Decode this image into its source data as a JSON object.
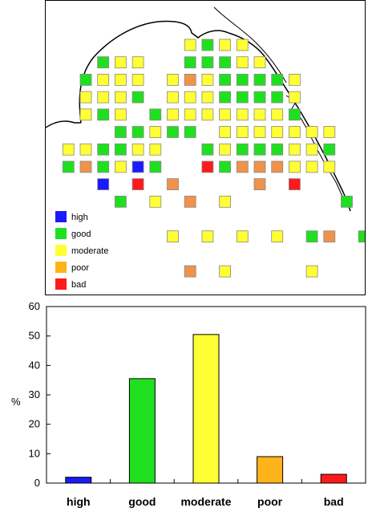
{
  "colors": {
    "high": "#1a1aff",
    "good": "#1fe01f",
    "moderate": "#ffff33",
    "poor": "#ffb31a",
    "poor_map": "#f0924a",
    "bad": "#ff1a1a"
  },
  "map": {
    "legend": [
      {
        "label": "high",
        "color_key": "high"
      },
      {
        "label": "good",
        "color_key": "good"
      },
      {
        "label": "moderate",
        "color_key": "moderate"
      },
      {
        "label": "poor",
        "color_key": "poor"
      },
      {
        "label": "bad",
        "color_key": "bad"
      }
    ],
    "stations": [
      {
        "col": 6,
        "row": 0,
        "status": "moderate"
      },
      {
        "col": 7,
        "row": 0,
        "status": "good"
      },
      {
        "col": 8,
        "row": 0,
        "status": "moderate"
      },
      {
        "col": 9,
        "row": 0,
        "status": "moderate"
      },
      {
        "col": 1,
        "row": 1,
        "status": "good"
      },
      {
        "col": 2,
        "row": 1,
        "status": "moderate"
      },
      {
        "col": 3,
        "row": 1,
        "status": "moderate"
      },
      {
        "col": 6,
        "row": 1,
        "status": "good"
      },
      {
        "col": 7,
        "row": 1,
        "status": "good"
      },
      {
        "col": 8,
        "row": 1,
        "status": "good"
      },
      {
        "col": 9,
        "row": 1,
        "status": "moderate"
      },
      {
        "col": 10,
        "row": 1,
        "status": "moderate"
      },
      {
        "col": 0,
        "row": 2,
        "status": "good"
      },
      {
        "col": 1,
        "row": 2,
        "status": "moderate"
      },
      {
        "col": 2,
        "row": 2,
        "status": "moderate"
      },
      {
        "col": 3,
        "row": 2,
        "status": "moderate"
      },
      {
        "col": 5,
        "row": 2,
        "status": "moderate"
      },
      {
        "col": 6,
        "row": 2,
        "status": "poor"
      },
      {
        "col": 7,
        "row": 2,
        "status": "moderate"
      },
      {
        "col": 8,
        "row": 2,
        "status": "good"
      },
      {
        "col": 9,
        "row": 2,
        "status": "good"
      },
      {
        "col": 10,
        "row": 2,
        "status": "good"
      },
      {
        "col": 11,
        "row": 2,
        "status": "good"
      },
      {
        "col": 12,
        "row": 2,
        "status": "moderate"
      },
      {
        "col": 0,
        "row": 3,
        "status": "moderate"
      },
      {
        "col": 1,
        "row": 3,
        "status": "moderate"
      },
      {
        "col": 2,
        "row": 3,
        "status": "moderate"
      },
      {
        "col": 3,
        "row": 3,
        "status": "good"
      },
      {
        "col": 5,
        "row": 3,
        "status": "moderate"
      },
      {
        "col": 6,
        "row": 3,
        "status": "moderate"
      },
      {
        "col": 7,
        "row": 3,
        "status": "moderate"
      },
      {
        "col": 8,
        "row": 3,
        "status": "good"
      },
      {
        "col": 9,
        "row": 3,
        "status": "good"
      },
      {
        "col": 10,
        "row": 3,
        "status": "good"
      },
      {
        "col": 11,
        "row": 3,
        "status": "good"
      },
      {
        "col": 12,
        "row": 3,
        "status": "moderate"
      },
      {
        "col": 0,
        "row": 4,
        "status": "moderate"
      },
      {
        "col": 1,
        "row": 4,
        "status": "good"
      },
      {
        "col": 2,
        "row": 4,
        "status": "moderate"
      },
      {
        "col": 4,
        "row": 4,
        "status": "good"
      },
      {
        "col": 5,
        "row": 4,
        "status": "moderate"
      },
      {
        "col": 6,
        "row": 4,
        "status": "moderate"
      },
      {
        "col": 7,
        "row": 4,
        "status": "moderate"
      },
      {
        "col": 8,
        "row": 4,
        "status": "moderate"
      },
      {
        "col": 9,
        "row": 4,
        "status": "moderate"
      },
      {
        "col": 10,
        "row": 4,
        "status": "moderate"
      },
      {
        "col": 11,
        "row": 4,
        "status": "moderate"
      },
      {
        "col": 12,
        "row": 4,
        "status": "good"
      },
      {
        "col": 2,
        "row": 5,
        "status": "good"
      },
      {
        "col": 3,
        "row": 5,
        "status": "good"
      },
      {
        "col": 4,
        "row": 5,
        "status": "moderate"
      },
      {
        "col": 5,
        "row": 5,
        "status": "good"
      },
      {
        "col": 6,
        "row": 5,
        "status": "good"
      },
      {
        "col": 8,
        "row": 5,
        "status": "moderate"
      },
      {
        "col": 9,
        "row": 5,
        "status": "moderate"
      },
      {
        "col": 10,
        "row": 5,
        "status": "moderate"
      },
      {
        "col": 11,
        "row": 5,
        "status": "moderate"
      },
      {
        "col": 12,
        "row": 5,
        "status": "moderate"
      },
      {
        "col": 13,
        "row": 5,
        "status": "moderate"
      },
      {
        "col": 14,
        "row": 5,
        "status": "moderate"
      },
      {
        "col": -1,
        "row": 6,
        "status": "moderate"
      },
      {
        "col": 0,
        "row": 6,
        "status": "moderate"
      },
      {
        "col": 1,
        "row": 6,
        "status": "good"
      },
      {
        "col": 2,
        "row": 6,
        "status": "good"
      },
      {
        "col": 3,
        "row": 6,
        "status": "moderate"
      },
      {
        "col": 4,
        "row": 6,
        "status": "moderate"
      },
      {
        "col": 7,
        "row": 6,
        "status": "good"
      },
      {
        "col": 8,
        "row": 6,
        "status": "moderate"
      },
      {
        "col": 9,
        "row": 6,
        "status": "good"
      },
      {
        "col": 10,
        "row": 6,
        "status": "good"
      },
      {
        "col": 11,
        "row": 6,
        "status": "good"
      },
      {
        "col": 12,
        "row": 6,
        "status": "moderate"
      },
      {
        "col": 13,
        "row": 6,
        "status": "moderate"
      },
      {
        "col": 14,
        "row": 6,
        "status": "good"
      },
      {
        "col": -1,
        "row": 7,
        "status": "good"
      },
      {
        "col": 0,
        "row": 7,
        "status": "poor"
      },
      {
        "col": 1,
        "row": 7,
        "status": "good"
      },
      {
        "col": 2,
        "row": 7,
        "status": "moderate"
      },
      {
        "col": 3,
        "row": 7,
        "status": "high"
      },
      {
        "col": 4,
        "row": 7,
        "status": "good"
      },
      {
        "col": 7,
        "row": 7,
        "status": "bad"
      },
      {
        "col": 8,
        "row": 7,
        "status": "good"
      },
      {
        "col": 9,
        "row": 7,
        "status": "poor"
      },
      {
        "col": 10,
        "row": 7,
        "status": "poor"
      },
      {
        "col": 11,
        "row": 7,
        "status": "poor"
      },
      {
        "col": 12,
        "row": 7,
        "status": "moderate"
      },
      {
        "col": 13,
        "row": 7,
        "status": "moderate"
      },
      {
        "col": 14,
        "row": 7,
        "status": "moderate"
      },
      {
        "col": 1,
        "row": 8,
        "status": "high"
      },
      {
        "col": 3,
        "row": 8,
        "status": "bad"
      },
      {
        "col": 5,
        "row": 8,
        "status": "poor"
      },
      {
        "col": 10,
        "row": 8,
        "status": "poor"
      },
      {
        "col": 12,
        "row": 8,
        "status": "bad"
      },
      {
        "col": 2,
        "row": 9,
        "status": "good"
      },
      {
        "col": 4,
        "row": 9,
        "status": "moderate"
      },
      {
        "col": 6,
        "row": 9,
        "status": "poor"
      },
      {
        "col": 8,
        "row": 9,
        "status": "moderate"
      },
      {
        "col": 15,
        "row": 9,
        "status": "good"
      },
      {
        "col": 5,
        "row": 11,
        "status": "moderate"
      },
      {
        "col": 7,
        "row": 11,
        "status": "moderate"
      },
      {
        "col": 9,
        "row": 11,
        "status": "moderate"
      },
      {
        "col": 11,
        "row": 11,
        "status": "moderate"
      },
      {
        "col": 13,
        "row": 11,
        "status": "good"
      },
      {
        "col": 14,
        "row": 11,
        "status": "poor"
      },
      {
        "col": 16,
        "row": 11,
        "status": "good"
      },
      {
        "col": 6,
        "row": 13,
        "status": "poor"
      },
      {
        "col": 8,
        "row": 13,
        "status": "moderate"
      },
      {
        "col": 13,
        "row": 13,
        "status": "moderate"
      }
    ]
  },
  "chart_data": {
    "type": "bar",
    "categories": [
      "high",
      "good",
      "moderate",
      "poor",
      "bad"
    ],
    "values": [
      2,
      35.5,
      50.5,
      9,
      3
    ],
    "bar_color_keys": [
      "high",
      "good",
      "moderate",
      "poor",
      "bad"
    ],
    "ylabel": "%",
    "ylim": [
      0,
      60
    ],
    "yticks": [
      "0",
      "10",
      "20",
      "30",
      "40",
      "50",
      "60"
    ],
    "grid": false
  }
}
